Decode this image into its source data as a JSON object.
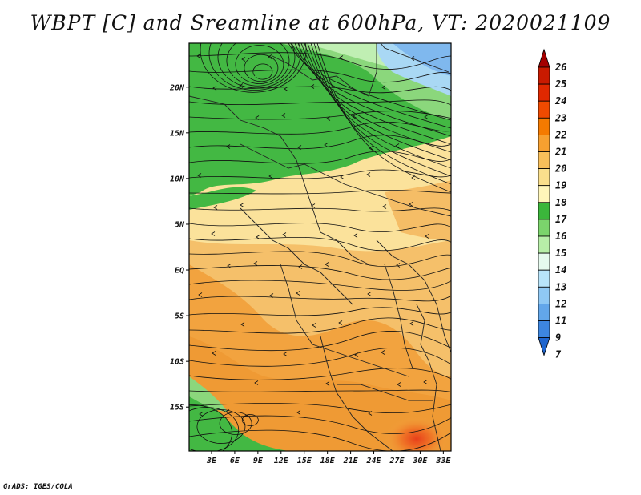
{
  "title": "WBPT [C] and Sreamline at 600hPa, VT: 2020021109",
  "credit": "GrADS: IGES/COLA",
  "map": {
    "lat_ticks": [
      "20N",
      "15N",
      "10N",
      "5N",
      "EQ",
      "5S",
      "10S",
      "15S"
    ],
    "lat_values": [
      20,
      15,
      10,
      5,
      0,
      -5,
      -10,
      -15
    ],
    "lon_ticks": [
      "3E",
      "6E",
      "9E",
      "12E",
      "15E",
      "18E",
      "21E",
      "24E",
      "27E",
      "30E",
      "33E"
    ],
    "lon_values": [
      3,
      6,
      9,
      12,
      15,
      18,
      21,
      24,
      27,
      30,
      33
    ],
    "lat_range": [
      -19.8,
      24.8
    ],
    "lon_range": [
      0.1,
      34.0
    ]
  },
  "colorbar": {
    "labels": [
      "26",
      "25",
      "24",
      "23",
      "22",
      "21",
      "20",
      "19",
      "18",
      "17",
      "16",
      "15",
      "14",
      "13",
      "12",
      "11",
      "9",
      "7"
    ],
    "colors": [
      "#a40000",
      "#c91a00",
      "#e02800",
      "#ef4a00",
      "#f57a00",
      "#f7a030",
      "#f8bf5a",
      "#fadf8c",
      "#fff6ba",
      "#3bb63b",
      "#7bd46c",
      "#b7eea8",
      "#e6faee",
      "#b8e4fa",
      "#8fc8f4",
      "#62a6ea",
      "#3d86df",
      "#1f66cf"
    ]
  }
}
